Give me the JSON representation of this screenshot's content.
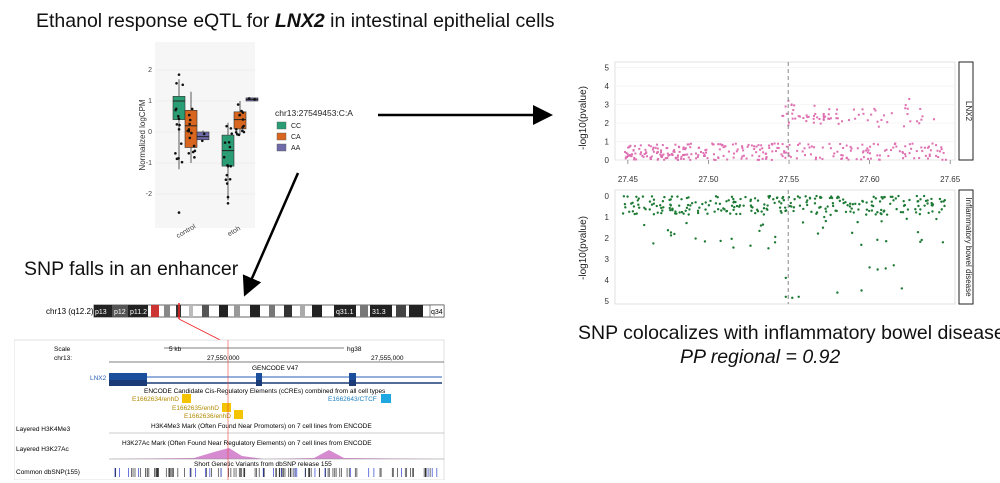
{
  "title": {
    "prefix": "Ethanol response eQTL for ",
    "gene": "LNX2",
    "suffix": " in intestinal epithelial cells"
  },
  "enhancer_caption": "SNP falls in an enhancer",
  "coloc_caption": "SNP colocalizes with inflammatory bowel disease",
  "pp_caption": "PP regional = 0.92",
  "boxplot": {
    "ylabel": "Normalized logCPM",
    "yticks": [
      "2",
      "1",
      "0",
      "-1",
      "-2"
    ],
    "groups": [
      "control",
      "etoh"
    ],
    "legend_title": "chr13:27549453:C:A",
    "legend": [
      {
        "label": "CC",
        "color": "#2a9d74"
      },
      {
        "label": "CA",
        "color": "#d9661f"
      },
      {
        "label": "AA",
        "color": "#6e6ba8"
      }
    ]
  },
  "manhattan": {
    "top_label": "LNX2",
    "bottom_label": "Inflammatory bowel disease",
    "ylabel": "-log10(pvalue)",
    "top_yticks": [
      "5",
      "4",
      "3",
      "2",
      "1",
      "0"
    ],
    "bottom_yticks": [
      "0",
      "1",
      "2",
      "3",
      "4",
      "5"
    ],
    "xticks": [
      "27.45",
      "27.50",
      "27.55",
      "27.60",
      "27.65"
    ],
    "top_color": "#de6fb1",
    "bottom_color": "#1d7a34"
  },
  "browser": {
    "chrom_label": "chr13 (q12.2)",
    "bands": [
      "p13",
      "p12",
      "p11.2",
      "q31.1",
      "31.3",
      "q34"
    ],
    "scale_label": "Scale",
    "chr_label": "chr13:",
    "scale_value": "5 kb",
    "assembly": "hg38",
    "pos1": "27,550,000",
    "pos2": "27,555,000",
    "gencode": "GENCODE V47",
    "gene": "LNX2",
    "ccre_title": "ENCODE Candidate Cis-Regulatory Elements (cCREs) combined from all cell types",
    "elements": [
      "E1662634/enhD",
      "E1662635/enhD",
      "E1662636/enhD",
      "E1662643/CTCF"
    ],
    "track_h3k4me3": "Layered H3K4Me3",
    "h3k4me3_desc": "H3K4Me3 Mark (Often Found Near Promoters) on 7 cell lines from ENCODE",
    "track_h3k27ac": "Layered H3K27Ac",
    "h3k27ac_desc": "H3K27Ac Mark (Often Found Near Regulatory Elements) on 7 cell lines from ENCODE",
    "track_dbsnp": "Common dbSNP(155)",
    "dbsnp_desc": "Short Genetic Variants from dbSNP release 155"
  }
}
